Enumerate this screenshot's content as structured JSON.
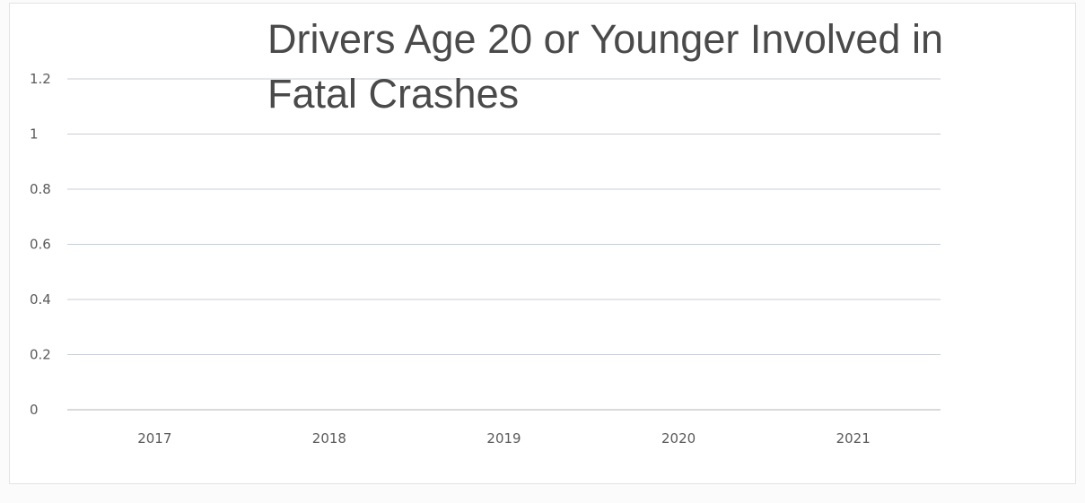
{
  "chart_data": {
    "type": "bar",
    "title_lines": [
      "Drivers Age 20 or Younger Involved in",
      "Fatal Crashes"
    ],
    "categories": [
      "2017",
      "2018",
      "2019",
      "2020",
      "2021"
    ],
    "values": [
      null,
      null,
      null,
      null,
      null
    ],
    "ylim": [
      0,
      1.2
    ],
    "yticks": [
      0,
      0.2,
      0.4,
      0.6,
      0.8,
      1,
      1.2
    ],
    "ytick_labels": [
      "0",
      "0.2",
      "0.4",
      "0.6",
      "0.8",
      "1",
      "1.2"
    ],
    "grid": true,
    "legend": "none",
    "colors": {
      "grid": "#c9cdd6",
      "axis": "#c9cdd6",
      "text": "#5a5a5a",
      "title": "#4a4a4a"
    }
  }
}
